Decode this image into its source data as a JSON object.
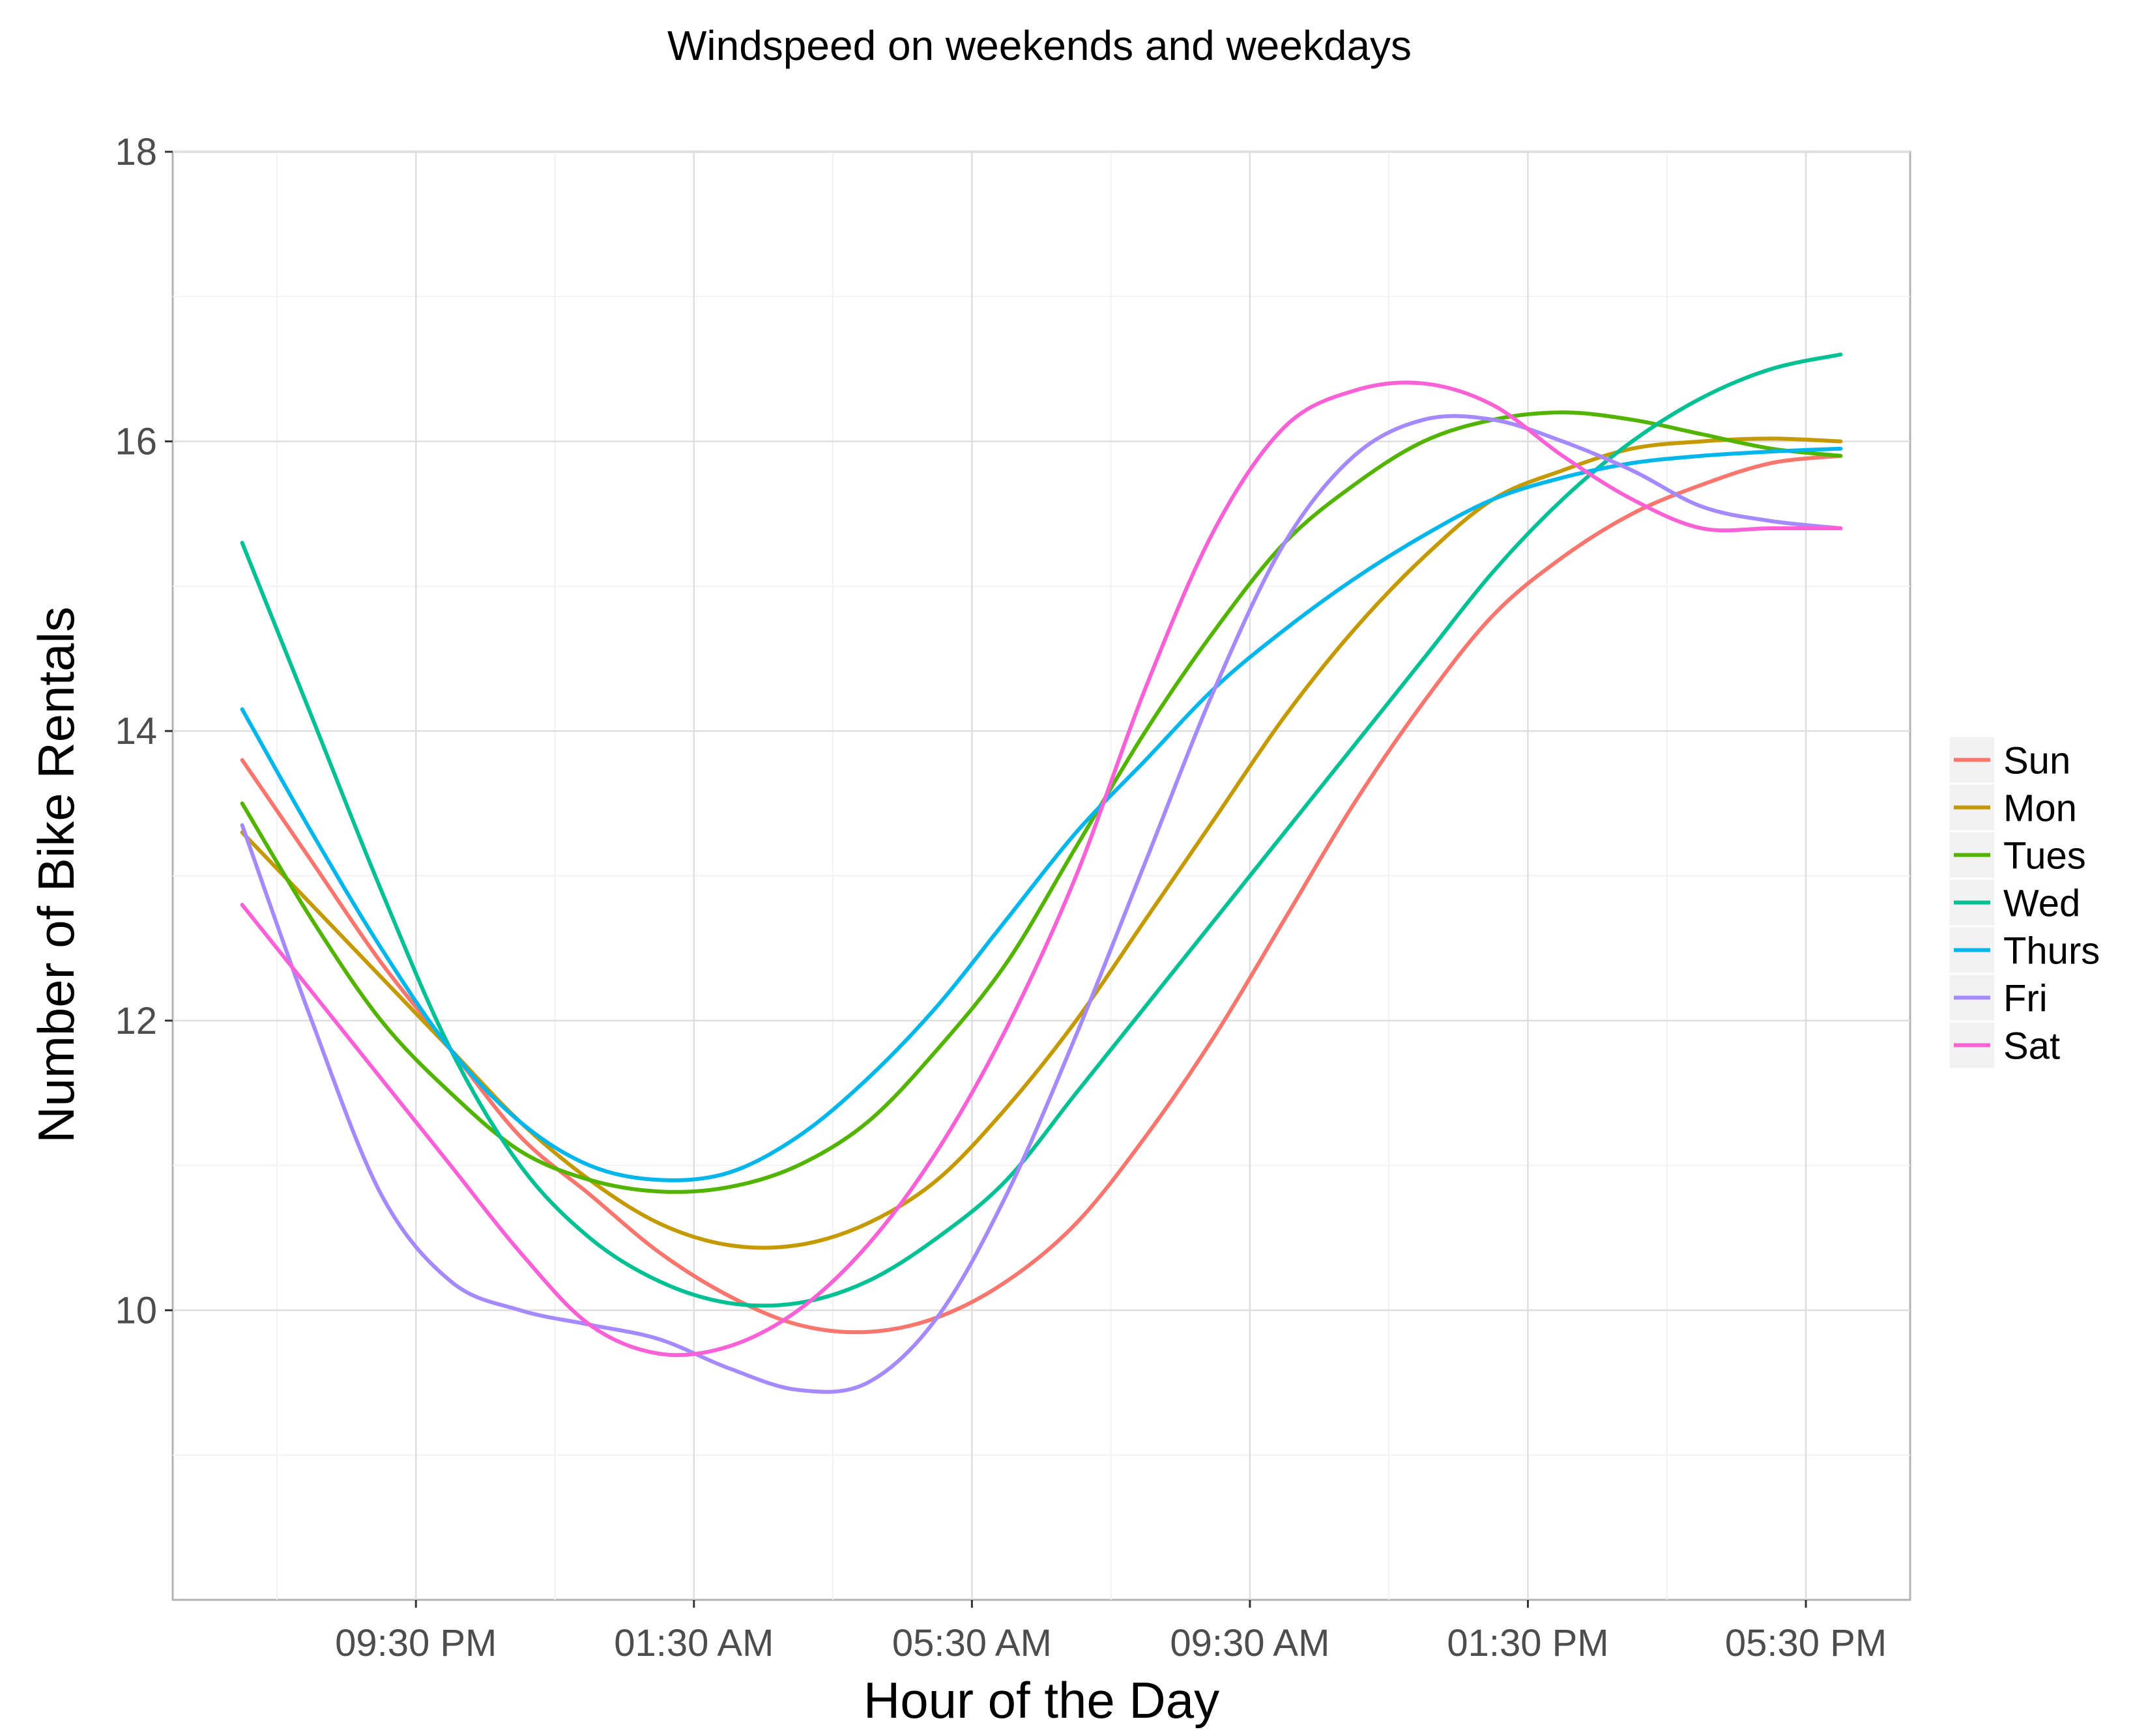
{
  "chart_data": {
    "type": "line",
    "title": "Windspeed on weekends and weekdays",
    "xlabel": "Hour of the Day",
    "ylabel": "Number of Bike Rentals",
    "x_unit": "hour of day (0-24, continuous from 19:00 to 42:00)",
    "xlim": [
      18,
      43
    ],
    "ylim": [
      8.0,
      18.0
    ],
    "x_ticks": [
      {
        "value": 21.5,
        "label": "09:30 PM"
      },
      {
        "value": 25.5,
        "label": "01:30 AM"
      },
      {
        "value": 29.5,
        "label": "05:30 AM"
      },
      {
        "value": 33.5,
        "label": "09:30 AM"
      },
      {
        "value": 37.5,
        "label": "01:30 PM"
      },
      {
        "value": 41.5,
        "label": "05:30 PM"
      }
    ],
    "y_ticks": [
      10,
      12,
      14,
      16,
      18
    ],
    "grid": true,
    "legend_position": "right",
    "x": [
      19.0,
      20.0,
      21.0,
      22.0,
      23.0,
      24.0,
      25.0,
      26.0,
      27.0,
      28.0,
      29.0,
      30.0,
      31.0,
      32.0,
      33.0,
      34.0,
      35.0,
      36.0,
      37.0,
      38.0,
      39.0,
      40.0,
      41.0,
      42.0
    ],
    "series": [
      {
        "name": "Sun",
        "color": "#f8766d",
        "values": [
          13.8,
          13.1,
          12.4,
          11.8,
          11.2,
          10.8,
          10.4,
          10.1,
          9.9,
          9.85,
          9.95,
          10.2,
          10.6,
          11.2,
          11.9,
          12.7,
          13.5,
          14.2,
          14.8,
          15.2,
          15.5,
          15.7,
          15.85,
          15.9
        ]
      },
      {
        "name": "Mon",
        "color": "#c49a00",
        "values": [
          13.3,
          12.8,
          12.3,
          11.8,
          11.3,
          10.9,
          10.6,
          10.45,
          10.45,
          10.6,
          10.9,
          11.4,
          12.0,
          12.7,
          13.4,
          14.1,
          14.7,
          15.2,
          15.6,
          15.8,
          15.95,
          16.0,
          16.02,
          16.0
        ]
      },
      {
        "name": "Tues",
        "color": "#53b400",
        "values": [
          13.5,
          12.7,
          12.0,
          11.5,
          11.1,
          10.9,
          10.82,
          10.85,
          11.0,
          11.3,
          11.8,
          12.4,
          13.2,
          14.0,
          14.7,
          15.3,
          15.7,
          16.0,
          16.15,
          16.2,
          16.15,
          16.05,
          15.95,
          15.9
        ]
      },
      {
        "name": "Wed",
        "color": "#00c094",
        "values": [
          15.3,
          14.1,
          12.9,
          11.8,
          11.0,
          10.5,
          10.2,
          10.05,
          10.05,
          10.2,
          10.5,
          10.9,
          11.5,
          12.1,
          12.7,
          13.3,
          13.9,
          14.5,
          15.1,
          15.6,
          16.0,
          16.3,
          16.5,
          16.6
        ]
      },
      {
        "name": "Thurs",
        "color": "#00b6eb",
        "values": [
          14.15,
          13.3,
          12.5,
          11.8,
          11.3,
          11.0,
          10.9,
          10.95,
          11.2,
          11.6,
          12.1,
          12.7,
          13.3,
          13.8,
          14.3,
          14.7,
          15.05,
          15.35,
          15.6,
          15.75,
          15.85,
          15.9,
          15.93,
          15.95
        ]
      },
      {
        "name": "Fri",
        "color": "#a58aff",
        "values": [
          13.35,
          12.0,
          10.8,
          10.2,
          10.0,
          9.9,
          9.8,
          9.6,
          9.45,
          9.5,
          9.95,
          10.8,
          11.9,
          13.1,
          14.3,
          15.3,
          15.9,
          16.15,
          16.15,
          16.0,
          15.8,
          15.55,
          15.45,
          15.4
        ]
      },
      {
        "name": "Sat",
        "color": "#fb61d7",
        "values": [
          12.8,
          12.2,
          11.6,
          11.0,
          10.4,
          9.9,
          9.7,
          9.75,
          10.0,
          10.45,
          11.1,
          11.95,
          13.0,
          14.3,
          15.4,
          16.1,
          16.35,
          16.4,
          16.25,
          15.9,
          15.6,
          15.4,
          15.4,
          15.4
        ]
      }
    ]
  }
}
